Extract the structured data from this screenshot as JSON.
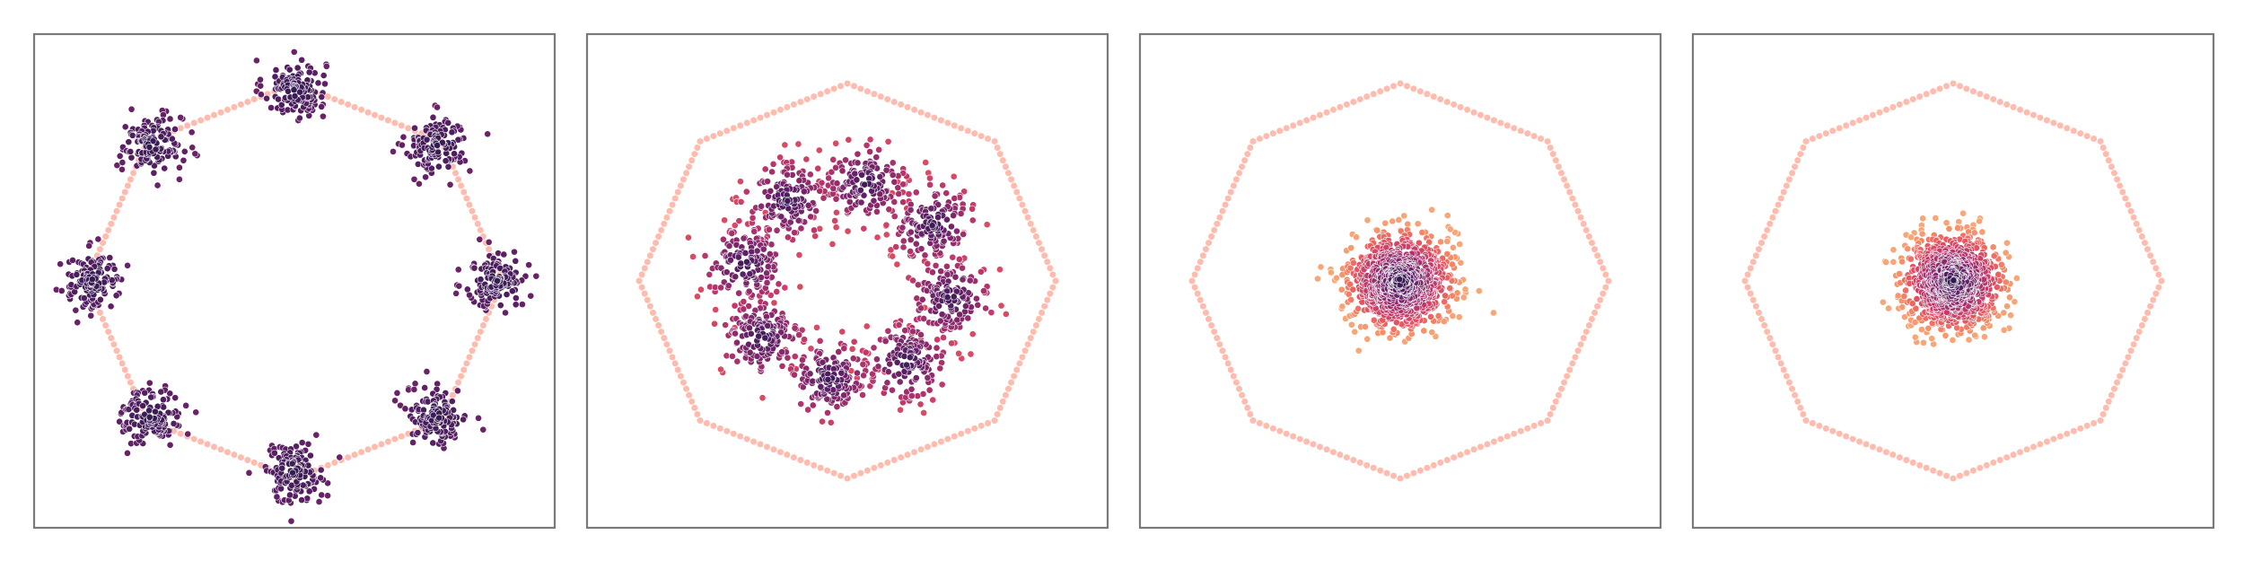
{
  "figure": {
    "panel_count": 4,
    "background": "#ffffff",
    "frame_color": "#7a7a7a",
    "boundary_color": "#ffb4a6",
    "colormap": [
      "#2d1b4e",
      "#5a1f64",
      "#8c2a6c",
      "#c0386a",
      "#e8575f",
      "#f68f67",
      "#f6b07e"
    ]
  },
  "chart_data": [
    {
      "type": "scatter",
      "title": "",
      "xlabel": "",
      "ylabel": "",
      "xlim": [
        -1.25,
        1.25
      ],
      "ylim": [
        -1.25,
        1.25
      ],
      "grid": false,
      "boundary": {
        "shape": "octagon",
        "radius": 1.0,
        "points_per_edge": 22
      },
      "series": [
        {
          "kind": "gaussian-clusters",
          "cluster_centers_angle_deg": [
            90,
            45,
            0,
            -45,
            -90,
            -135,
            180,
            135
          ],
          "cluster_radius": 0.97,
          "cluster_std": 0.075,
          "points_per_cluster": 130,
          "color_range": [
            0.02,
            0.22
          ]
        }
      ]
    },
    {
      "type": "scatter",
      "title": "",
      "xlabel": "",
      "ylabel": "",
      "xlim": [
        -1.25,
        1.25
      ],
      "ylim": [
        -1.25,
        1.25
      ],
      "grid": false,
      "boundary": {
        "shape": "octagon",
        "radius": 1.0,
        "points_per_edge": 22
      },
      "series": [
        {
          "kind": "gaussian-clusters",
          "cluster_centers_angle_deg": [
            80,
            35,
            -10,
            -55,
            -100,
            -145,
            170,
            125
          ],
          "cluster_radius": 0.5,
          "cluster_std": 0.1,
          "points_per_cluster": 150,
          "color_range": [
            0.05,
            0.6
          ]
        }
      ]
    },
    {
      "type": "scatter",
      "title": "",
      "xlabel": "",
      "ylabel": "",
      "xlim": [
        -1.25,
        1.25
      ],
      "ylim": [
        -1.25,
        1.25
      ],
      "grid": false,
      "boundary": {
        "shape": "octagon",
        "radius": 1.0,
        "points_per_edge": 22
      },
      "series": [
        {
          "kind": "central-gaussian",
          "center": [
            0.0,
            0.0
          ],
          "std": 0.12,
          "n_points": 900,
          "color_range": [
            0.0,
            0.95
          ]
        }
      ]
    },
    {
      "type": "scatter",
      "title": "",
      "xlabel": "",
      "ylabel": "",
      "xlim": [
        -1.25,
        1.25
      ],
      "ylim": [
        -1.25,
        1.25
      ],
      "grid": false,
      "boundary": {
        "shape": "octagon",
        "radius": 1.0,
        "points_per_edge": 22
      },
      "series": [
        {
          "kind": "central-gaussian",
          "center": [
            0.0,
            0.0
          ],
          "std": 0.115,
          "n_points": 900,
          "color_range": [
            0.0,
            0.95
          ]
        }
      ]
    }
  ]
}
